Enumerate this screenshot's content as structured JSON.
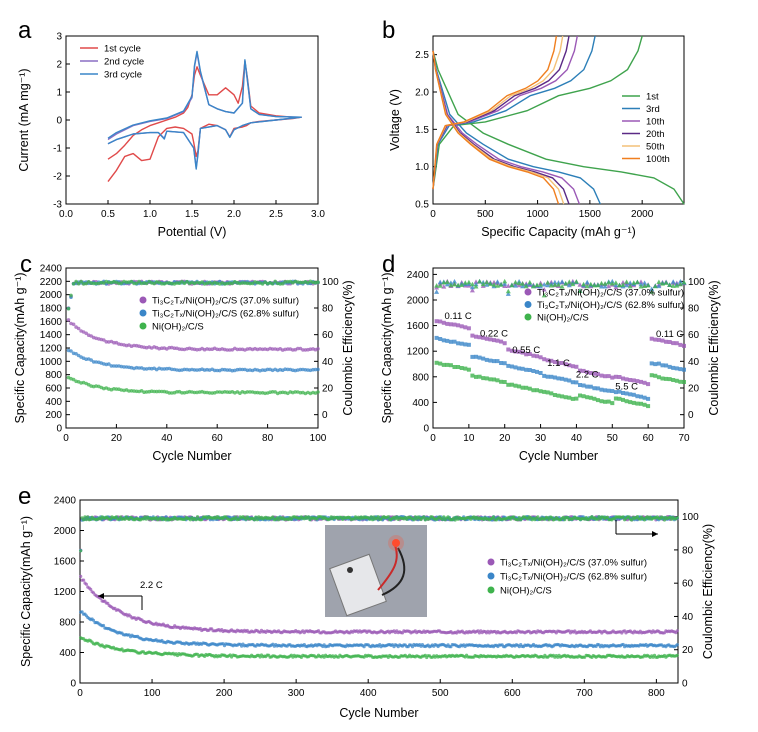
{
  "chart_data": [
    {
      "id": "a",
      "type": "line",
      "panel_label": "a",
      "xlabel": "Potential (V)",
      "ylabel": "Current (mA mg⁻¹)",
      "xlim": [
        0,
        3.0
      ],
      "ylim": [
        -3,
        3
      ],
      "xticks": [
        "0.0",
        "0.5",
        "1.0",
        "1.5",
        "2.0",
        "2.5",
        "3.0"
      ],
      "yticks": [
        "-3",
        "-2",
        "-1",
        "0",
        "1",
        "2",
        "3"
      ],
      "legend": "top-left",
      "series": [
        {
          "name": "1st cycle",
          "color": "#e04a4a",
          "x": [
            0.5,
            0.6,
            0.7,
            0.8,
            0.9,
            1.0,
            1.1,
            1.2,
            1.3,
            1.4,
            1.45,
            1.5,
            1.53,
            1.56,
            1.6,
            1.7,
            1.8,
            1.9,
            2.0,
            2.05,
            2.1,
            2.13,
            2.16,
            2.2,
            2.3,
            2.5,
            2.7,
            2.8,
            2.7,
            2.5,
            2.3,
            2.2,
            2.15,
            2.1,
            2.0,
            1.95,
            1.9,
            1.8,
            1.7,
            1.6,
            1.57,
            1.55,
            1.52,
            1.5,
            1.4,
            1.3,
            1.2,
            1.1,
            1.0,
            0.9,
            0.8,
            0.7,
            0.6,
            0.5
          ],
          "y": [
            -1.4,
            -1.2,
            -0.9,
            -0.55,
            -0.35,
            -0.2,
            -0.1,
            0.0,
            0.1,
            0.25,
            0.45,
            0.9,
            1.6,
            1.9,
            1.6,
            0.9,
            0.9,
            1.15,
            0.9,
            0.6,
            1.2,
            2.1,
            1.5,
            0.5,
            0.25,
            0.15,
            0.1,
            0.1,
            0.05,
            0.0,
            -0.05,
            -0.1,
            -0.2,
            -0.25,
            -0.3,
            -0.6,
            -0.35,
            -0.2,
            -0.15,
            -0.3,
            -1.1,
            -1.3,
            -0.8,
            -0.5,
            -0.3,
            -0.25,
            -0.3,
            -0.6,
            -1.4,
            -1.45,
            -1.2,
            -1.3,
            -1.8,
            -2.2
          ]
        },
        {
          "name": "2nd cycle",
          "color": "#8a6fc4",
          "x": [
            0.5,
            0.6,
            0.8,
            1.0,
            1.2,
            1.4,
            1.5,
            1.53,
            1.56,
            1.6,
            1.7,
            1.8,
            1.9,
            2.0,
            2.1,
            2.13,
            2.16,
            2.2,
            2.3,
            2.5,
            2.8,
            2.5,
            2.2,
            2.1,
            2.0,
            1.95,
            1.9,
            1.8,
            1.6,
            1.57,
            1.55,
            1.52,
            1.4,
            1.2,
            1.17,
            1.1,
            1.0,
            0.8,
            0.6,
            0.5
          ],
          "y": [
            -0.7,
            -0.5,
            -0.2,
            -0.05,
            0.05,
            0.3,
            0.8,
            1.9,
            2.4,
            1.7,
            0.55,
            0.4,
            0.3,
            0.25,
            0.6,
            2.1,
            1.4,
            0.4,
            0.2,
            0.12,
            0.1,
            0.0,
            -0.1,
            -0.2,
            -0.35,
            -0.6,
            -0.35,
            -0.2,
            -0.3,
            -1.2,
            -1.7,
            -1.0,
            -0.45,
            -0.4,
            -0.65,
            -0.45,
            -0.45,
            -0.5,
            -0.7,
            -0.85
          ]
        },
        {
          "name": "3rd cycle",
          "color": "#3a86c8",
          "x": [
            0.5,
            0.6,
            0.8,
            1.0,
            1.2,
            1.4,
            1.5,
            1.53,
            1.56,
            1.6,
            1.7,
            1.8,
            1.9,
            2.0,
            2.1,
            2.13,
            2.16,
            2.2,
            2.3,
            2.5,
            2.8,
            2.5,
            2.2,
            2.1,
            2.0,
            1.95,
            1.9,
            1.8,
            1.6,
            1.57,
            1.55,
            1.52,
            1.4,
            1.2,
            1.17,
            1.1,
            1.0,
            0.8,
            0.6,
            0.5
          ],
          "y": [
            -0.65,
            -0.45,
            -0.18,
            -0.03,
            0.07,
            0.32,
            0.85,
            1.95,
            2.45,
            1.75,
            0.55,
            0.4,
            0.3,
            0.25,
            0.6,
            2.15,
            1.45,
            0.4,
            0.2,
            0.12,
            0.1,
            0.0,
            -0.1,
            -0.2,
            -0.35,
            -0.62,
            -0.35,
            -0.2,
            -0.3,
            -1.25,
            -1.75,
            -1.0,
            -0.45,
            -0.4,
            -0.68,
            -0.45,
            -0.45,
            -0.5,
            -0.7,
            -0.85
          ]
        }
      ]
    },
    {
      "id": "b",
      "type": "line",
      "panel_label": "b",
      "xlabel": "Specific Capacity (mAh g⁻¹)",
      "ylabel": "Voltage (V)",
      "xlim": [
        0,
        2400
      ],
      "ylim": [
        0.5,
        2.75
      ],
      "xticks": [
        "0",
        "500",
        "1000",
        "1500",
        "2000"
      ],
      "xtick_vals": [
        0,
        500,
        1000,
        1500,
        2000
      ],
      "yticks": [
        "0.5",
        "1.0",
        "1.5",
        "2.0",
        "2.5"
      ],
      "ytick_vals": [
        0.5,
        1.0,
        1.5,
        2.0,
        2.5
      ],
      "legend": "right",
      "series": [
        {
          "name": "1st",
          "color": "#3fa34d",
          "dis": 2400,
          "ch": 2000
        },
        {
          "name": "3rd",
          "color": "#2c7fb8",
          "dis": 1600,
          "ch": 1550
        },
        {
          "name": "10th",
          "color": "#9b59b6",
          "dis": 1400,
          "ch": 1380
        },
        {
          "name": "20th",
          "color": "#5b2a86",
          "dis": 1300,
          "ch": 1300
        },
        {
          "name": "50th",
          "color": "#f3c178",
          "dis": 1250,
          "ch": 1240
        },
        {
          "name": "100th",
          "color": "#f07f1f",
          "dis": 1200,
          "ch": 1180
        }
      ]
    },
    {
      "id": "c",
      "type": "scatter",
      "panel_label": "c",
      "xlabel": "Cycle Number",
      "ylabel": "Specific Capacity(mAh g⁻¹)",
      "y2label": "Coulombic Efficiency(%)",
      "xlim": [
        0,
        100
      ],
      "ylim": [
        0,
        2400
      ],
      "y2lim": [
        -10,
        110
      ],
      "xticks": [
        "0",
        "20",
        "40",
        "60",
        "80",
        "100"
      ],
      "yticks": [
        "0",
        "200",
        "400",
        "600",
        "800",
        "1000",
        "1200",
        "1400",
        "1600",
        "1800",
        "2000",
        "2200",
        "2400"
      ],
      "y2ticks": [
        "0",
        "20",
        "40",
        "60",
        "80",
        "100"
      ],
      "legend": "center-right",
      "series": [
        {
          "name": "Ti₃C₂Tₓ/Ni(OH)₂/C/S (37.0% sulfur)",
          "color": "#9b59b6",
          "marker": "circle",
          "start": 1650,
          "end": 1180,
          "ce": 100
        },
        {
          "name": "Ti₃C₂Tₓ/Ni(OH)₂/C/S (62.8% sulfur)",
          "color": "#3a86c8",
          "marker": "circle",
          "start": 1200,
          "end": 870,
          "ce": 100
        },
        {
          "name": "Ni(OH)₂/C/S",
          "color": "#3fb34d",
          "marker": "circle",
          "start": 780,
          "end": 530,
          "ce": 100
        }
      ]
    },
    {
      "id": "d",
      "type": "scatter",
      "panel_label": "d",
      "xlabel": "Cycle Number",
      "ylabel": "Specific Capacity(mAh g⁻¹)",
      "y2label": "Coulombic Efficiency(%)",
      "xlim": [
        0,
        70
      ],
      "ylim": [
        0,
        2500
      ],
      "y2lim": [
        -10,
        110
      ],
      "xticks": [
        "0",
        "10",
        "20",
        "30",
        "40",
        "50",
        "60",
        "70"
      ],
      "yticks": [
        "0",
        "400",
        "800",
        "1200",
        "1600",
        "2000",
        "2400"
      ],
      "y2ticks": [
        "0",
        "20",
        "40",
        "60",
        "80",
        "100"
      ],
      "legend": "top",
      "rate_labels": [
        {
          "text": "0.11 C",
          "x": 7,
          "y": 1700
        },
        {
          "text": "0.22 C",
          "x": 17,
          "y": 1430
        },
        {
          "text": "0.55 C",
          "x": 26,
          "y": 1170
        },
        {
          "text": "1.1 C",
          "x": 35,
          "y": 970
        },
        {
          "text": "2.2 C",
          "x": 43,
          "y": 790
        },
        {
          "text": "5.5 C",
          "x": 54,
          "y": 600
        },
        {
          "text": "0.11 C",
          "x": 66,
          "y": 1420
        }
      ],
      "series": [
        {
          "name": "Ti₃C₂Tₓ/Ni(OH)₂/C/S (37.0% sulfur)",
          "color": "#9b59b6",
          "levels": [
            1550,
            1320,
            1100,
            950,
            780,
            680,
            1280
          ]
        },
        {
          "name": "Ti₃C₂Tₓ/Ni(OH)₂/C/S (62.8% sulfur)",
          "color": "#3a86c8",
          "levels": [
            1280,
            1000,
            850,
            700,
            560,
            450,
            900
          ]
        },
        {
          "name": "Ni(OH)₂/C/S",
          "color": "#3fb34d",
          "levels": [
            900,
            700,
            560,
            440,
            380,
            340,
            700
          ]
        }
      ]
    },
    {
      "id": "e",
      "type": "scatter",
      "panel_label": "e",
      "xlabel": "Cycle Number",
      "ylabel": "Specific Capacity(mAh g⁻¹)",
      "y2label": "Coulombic Efficiency(%)",
      "xlim": [
        0,
        830
      ],
      "ylim": [
        0,
        2400
      ],
      "y2lim": [
        0,
        110
      ],
      "xticks": [
        "0",
        "100",
        "200",
        "300",
        "400",
        "500",
        "600",
        "700",
        "800"
      ],
      "yticks": [
        "0",
        "400",
        "800",
        "1200",
        "1600",
        "2000",
        "2400"
      ],
      "y2ticks": [
        "0",
        "20",
        "40",
        "60",
        "80",
        "100"
      ],
      "legend": "right",
      "rate_label": "2.2 C",
      "series": [
        {
          "name": "Ti₃C₂Tₓ/Ni(OH)₂/C/S (37.0% sulfur)",
          "color": "#9b59b6",
          "start": 1400,
          "end": 670
        },
        {
          "name": "Ti₃C₂Tₓ/Ni(OH)₂/C/S (62.8% sulfur)",
          "color": "#3a86c8",
          "start": 950,
          "end": 490
        },
        {
          "name": "Ni(OH)₂/C/S",
          "color": "#3fb34d",
          "start": 600,
          "end": 350
        }
      ]
    }
  ]
}
